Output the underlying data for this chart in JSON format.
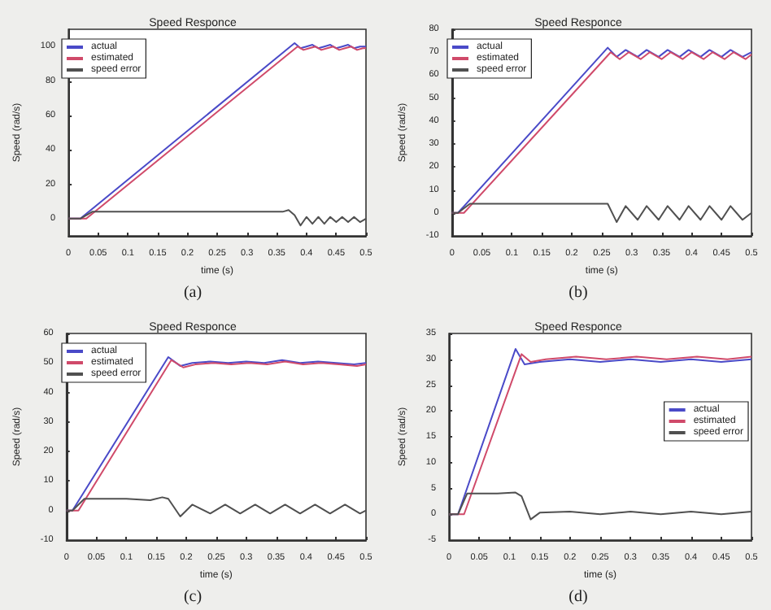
{
  "chart_data": [
    {
      "type": "line",
      "title": "Speed Responce",
      "xlabel": "time (s)",
      "ylabel": "Speed (rad/s)",
      "annotations": [
        "(a)"
      ],
      "xlim": [
        0,
        0.5
      ],
      "xticks": [
        0,
        0.05,
        0.1,
        0.15,
        0.2,
        0.25,
        0.3,
        0.35,
        0.4,
        0.45,
        0.5
      ],
      "ylim": [
        -10,
        110
      ],
      "yticks": [
        0,
        20,
        40,
        60,
        80,
        100
      ],
      "legend": "top left",
      "marker": "none",
      "grid": false,
      "series": [
        {
          "name": "actual",
          "color": "#4a4ac8",
          "x": [
            0,
            0.02,
            0.38,
            0.39,
            0.4,
            0.41,
            0.42,
            0.43,
            0.44,
            0.45,
            0.46,
            0.47,
            0.48,
            0.49,
            0.5
          ],
          "values": [
            0,
            0,
            102,
            99,
            100,
            101,
            99,
            100,
            101,
            99,
            100,
            101,
            99,
            100,
            100
          ]
        },
        {
          "name": "estimated",
          "color": "#d04a6a",
          "x": [
            0,
            0.03,
            0.385,
            0.395,
            0.405,
            0.415,
            0.425,
            0.435,
            0.445,
            0.455,
            0.465,
            0.475,
            0.485,
            0.495,
            0.5
          ],
          "values": [
            0,
            0,
            100,
            98,
            99,
            100,
            98,
            99,
            100,
            98,
            99,
            100,
            98,
            99,
            99
          ]
        },
        {
          "name": "speed error",
          "color": "#505050",
          "x": [
            0,
            0.02,
            0.04,
            0.1,
            0.2,
            0.3,
            0.36,
            0.37,
            0.38,
            0.39,
            0.4,
            0.41,
            0.42,
            0.43,
            0.44,
            0.45,
            0.46,
            0.47,
            0.48,
            0.49,
            0.5
          ],
          "values": [
            0,
            0,
            4,
            4,
            4,
            4,
            4,
            5,
            2,
            -4,
            1,
            -3,
            1,
            -3,
            1,
            -2,
            1,
            -2,
            1,
            -2,
            0
          ]
        }
      ]
    },
    {
      "type": "line",
      "title": "Speed Responce",
      "xlabel": "time (s)",
      "ylabel": "Speed (rad/s)",
      "annotations": [
        "(b)"
      ],
      "xlim": [
        0,
        0.5
      ],
      "xticks": [
        0,
        0.05,
        0.1,
        0.15,
        0.2,
        0.25,
        0.3,
        0.35,
        0.4,
        0.45,
        0.5
      ],
      "ylim": [
        -10,
        80
      ],
      "yticks": [
        -10,
        0,
        10,
        20,
        30,
        40,
        50,
        60,
        70,
        80
      ],
      "legend": "top left",
      "marker": "none",
      "grid": false,
      "series": [
        {
          "name": "actual",
          "color": "#4a4ac8",
          "x": [
            0,
            0.01,
            0.26,
            0.275,
            0.29,
            0.31,
            0.325,
            0.345,
            0.36,
            0.38,
            0.395,
            0.415,
            0.43,
            0.45,
            0.465,
            0.485,
            0.5
          ],
          "values": [
            0,
            0,
            72,
            68,
            71,
            68,
            71,
            68,
            71,
            68,
            71,
            68,
            71,
            68,
            71,
            68,
            70
          ]
        },
        {
          "name": "estimated",
          "color": "#d04a6a",
          "x": [
            0,
            0.02,
            0.265,
            0.28,
            0.295,
            0.315,
            0.33,
            0.35,
            0.365,
            0.385,
            0.4,
            0.42,
            0.435,
            0.455,
            0.47,
            0.49,
            0.5
          ],
          "values": [
            0,
            0,
            70,
            67,
            70,
            67,
            70,
            67,
            70,
            67,
            70,
            67,
            70,
            67,
            70,
            67,
            69
          ]
        },
        {
          "name": "speed error",
          "color": "#505050",
          "x": [
            0,
            0.01,
            0.03,
            0.1,
            0.2,
            0.25,
            0.26,
            0.275,
            0.29,
            0.31,
            0.325,
            0.345,
            0.36,
            0.38,
            0.395,
            0.415,
            0.43,
            0.45,
            0.465,
            0.485,
            0.5
          ],
          "values": [
            0,
            0,
            4,
            4,
            4,
            4,
            4,
            -4,
            3,
            -3,
            3,
            -3,
            3,
            -3,
            3,
            -3,
            3,
            -3,
            3,
            -3,
            0
          ]
        }
      ]
    },
    {
      "type": "line",
      "title": "Speed Responce",
      "xlabel": "time (s)",
      "ylabel": "Speed (rad/s)",
      "annotations": [
        "(c)"
      ],
      "xlim": [
        0,
        0.5
      ],
      "xticks": [
        0,
        0.05,
        0.1,
        0.15,
        0.2,
        0.25,
        0.3,
        0.35,
        0.4,
        0.45,
        0.5
      ],
      "ylim": [
        -10,
        60
      ],
      "yticks": [
        -10,
        0,
        10,
        20,
        30,
        40,
        50,
        60
      ],
      "legend": "top left",
      "marker": "none",
      "grid": false,
      "series": [
        {
          "name": "actual",
          "color": "#4a4ac8",
          "x": [
            0,
            0.01,
            0.17,
            0.19,
            0.21,
            0.24,
            0.27,
            0.3,
            0.33,
            0.36,
            0.39,
            0.42,
            0.45,
            0.48,
            0.5
          ],
          "values": [
            0,
            0,
            52,
            49,
            50,
            50.5,
            50,
            50.5,
            50,
            51,
            50,
            50.5,
            50,
            49.5,
            50
          ]
        },
        {
          "name": "estimated",
          "color": "#d04a6a",
          "x": [
            0,
            0.02,
            0.175,
            0.195,
            0.215,
            0.245,
            0.275,
            0.305,
            0.335,
            0.365,
            0.395,
            0.425,
            0.455,
            0.485,
            0.5
          ],
          "values": [
            0,
            0,
            51,
            48.5,
            49.5,
            50,
            49.5,
            50,
            49.5,
            50.5,
            49.5,
            50,
            49.5,
            49,
            49.5
          ]
        },
        {
          "name": "speed error",
          "color": "#505050",
          "x": [
            0,
            0.01,
            0.03,
            0.1,
            0.14,
            0.16,
            0.17,
            0.19,
            0.21,
            0.24,
            0.265,
            0.29,
            0.315,
            0.34,
            0.365,
            0.39,
            0.415,
            0.44,
            0.465,
            0.49,
            0.5
          ],
          "values": [
            0,
            0,
            4,
            4,
            3.5,
            4.5,
            4,
            -2,
            2,
            -1,
            2,
            -1,
            2,
            -1,
            2,
            -1,
            2,
            -1,
            2,
            -1,
            0
          ]
        }
      ]
    },
    {
      "type": "line",
      "title": "Speed Responce",
      "xlabel": "time (s)",
      "ylabel": "Speed (rad/s)",
      "annotations": [
        "(d)"
      ],
      "xlim": [
        0,
        0.5
      ],
      "xticks": [
        0,
        0.05,
        0.1,
        0.15,
        0.2,
        0.25,
        0.3,
        0.35,
        0.4,
        0.45,
        0.5
      ],
      "ylim": [
        -5,
        35
      ],
      "yticks": [
        -5,
        0,
        5,
        10,
        15,
        20,
        25,
        30,
        35
      ],
      "legend": "right",
      "marker": "none",
      "grid": false,
      "series": [
        {
          "name": "actual",
          "color": "#4a4ac8",
          "x": [
            0,
            0.015,
            0.11,
            0.125,
            0.15,
            0.2,
            0.25,
            0.3,
            0.35,
            0.4,
            0.45,
            0.5
          ],
          "values": [
            0,
            0,
            32,
            29,
            29.5,
            30,
            29.5,
            30,
            29.5,
            30,
            29.5,
            30
          ]
        },
        {
          "name": "estimated",
          "color": "#d04a6a",
          "x": [
            0,
            0.025,
            0.12,
            0.135,
            0.16,
            0.21,
            0.26,
            0.31,
            0.36,
            0.41,
            0.46,
            0.5
          ],
          "values": [
            0,
            0,
            31,
            29.5,
            30,
            30.5,
            30,
            30.5,
            30,
            30.5,
            30,
            30.5
          ]
        },
        {
          "name": "speed error",
          "color": "#505050",
          "x": [
            0,
            0.015,
            0.03,
            0.08,
            0.11,
            0.12,
            0.135,
            0.15,
            0.2,
            0.25,
            0.3,
            0.35,
            0.4,
            0.45,
            0.5
          ],
          "values": [
            0,
            0,
            4,
            4,
            4.2,
            3.5,
            -1,
            0.3,
            0.5,
            0,
            0.5,
            0,
            0.5,
            0,
            0.5
          ]
        }
      ]
    }
  ]
}
